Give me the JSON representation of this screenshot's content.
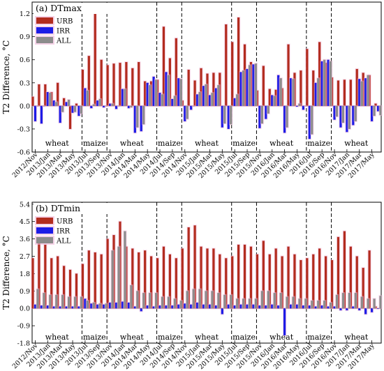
{
  "colors": {
    "URB": "#b22c1e",
    "IRR": "#1c1ce6",
    "ALL": "#8c8c8c",
    "glow": "#f0b6d8"
  },
  "chart_data": [
    {
      "type": "bar",
      "title": "(a) DTmax",
      "ylabel": "T2 Difference, °C",
      "ylim": [
        -0.6,
        1.35
      ],
      "yticks": [
        "-0.6",
        "-0.3",
        "0.0",
        "0.3",
        "0.6",
        "0.9",
        "1.2"
      ],
      "ytick_values": [
        -0.6,
        -0.3,
        0.0,
        0.3,
        0.6,
        0.9,
        1.2
      ],
      "legend": {
        "placement": "top-left",
        "entries": [
          "URB",
          "IRR",
          "ALL"
        ]
      },
      "xticks": [
        "2012/Nov",
        "2013/Jan",
        "2013/Mar",
        "2013/May",
        "2013/Jul",
        "2013/Sep",
        "2013/Nov",
        "2014/Jan",
        "2014/Mar",
        "2014/May",
        "2014/Jul",
        "2014/Sep",
        "2014/Nov",
        "2015/Jan",
        "2015/Mar",
        "2015/May",
        "2015/Jul",
        "2015/Sep",
        "2015/Nov",
        "2016/Jan",
        "2016/Mar",
        "2016/May",
        "2016/Jul",
        "2016/Sep",
        "2016/Nov",
        "2017/Jan",
        "2017/Mar",
        "2017/May"
      ],
      "seasons": [
        {
          "label": "wheat",
          "start": 0,
          "end": 8
        },
        {
          "label": "maize",
          "start": 8,
          "end": 12
        },
        {
          "label": "wheat",
          "start": 12,
          "end": 20
        },
        {
          "label": "maize",
          "start": 20,
          "end": 24
        },
        {
          "label": "wheat",
          "start": 24,
          "end": 32
        },
        {
          "label": "maize",
          "start": 32,
          "end": 36
        },
        {
          "label": "wheat",
          "start": 36,
          "end": 44
        },
        {
          "label": "maize",
          "start": 44,
          "end": 48
        },
        {
          "label": "wheat",
          "start": 48,
          "end": 56
        }
      ],
      "series": [
        {
          "name": "URB",
          "values": [
            0.12,
            0.28,
            0.28,
            0.18,
            0.3,
            0.1,
            -0.3,
            0.03,
            0.47,
            0.65,
            1.3,
            0.6,
            0.53,
            0.55,
            0.56,
            0.57,
            0.49,
            0.57,
            0.32,
            0.32,
            0.34,
            1.03,
            0.62,
            0.88,
            0.07,
            0.47,
            0.33,
            0.49,
            0.42,
            0.43,
            0.43,
            1.06,
            0.83,
            1.15,
            0.8,
            0.57,
            0.2,
            0.52,
            0.22,
            0.21,
            0.23,
            0.8,
            0.43,
            0.46,
            0.74,
            0.46,
            0.83,
            0.56,
            0.37,
            0.33,
            0.34,
            0.34,
            0.48,
            0.43,
            0.4,
            0.03
          ]
        },
        {
          "name": "IRR",
          "values": [
            -0.2,
            -0.23,
            0.18,
            0.07,
            -0.22,
            0.05,
            -0.09,
            -0.13,
            0.23,
            -0.03,
            0.07,
            -0.02,
            0.03,
            -0.04,
            0.22,
            -0.03,
            -0.35,
            -0.33,
            0.3,
            0.38,
            0.17,
            0.44,
            0.09,
            0.36,
            -0.2,
            -0.05,
            0.15,
            0.26,
            0.14,
            0.23,
            -0.28,
            -0.3,
            0.1,
            0.44,
            0.48,
            0.54,
            -0.29,
            -0.17,
            0.14,
            0.4,
            -0.35,
            0.36,
            -0.01,
            -0.05,
            -0.43,
            0.3,
            0.58,
            0.6,
            -0.18,
            -0.28,
            -0.34,
            -0.25,
            0.35,
            0.36,
            -0.2,
            -0.07
          ]
        },
        {
          "name": "ALL",
          "values": [
            0.0,
            0.0,
            0.17,
            0.05,
            -0.08,
            0.08,
            -0.08,
            -0.1,
            0.2,
            0.02,
            0.09,
            0.0,
            0.03,
            0.0,
            0.22,
            -0.02,
            -0.28,
            -0.24,
            0.27,
            0.34,
            0.15,
            0.4,
            0.13,
            0.35,
            -0.17,
            0.0,
            0.18,
            0.28,
            0.17,
            0.27,
            -0.23,
            -0.24,
            0.15,
            0.46,
            0.53,
            0.55,
            -0.23,
            -0.1,
            0.13,
            0.36,
            -0.28,
            0.35,
            0.03,
            0.0,
            -0.37,
            0.36,
            0.6,
            0.58,
            -0.14,
            -0.22,
            -0.3,
            -0.2,
            0.32,
            0.4,
            -0.13,
            -0.12
          ]
        }
      ]
    },
    {
      "type": "bar",
      "title": "(b) DTmin",
      "ylabel": "T2 Difference, °C",
      "ylim": [
        -1.8,
        5.5
      ],
      "yticks": [
        "-1.8",
        "-0.9",
        "0.0",
        "0.9",
        "1.8",
        "2.7",
        "3.6",
        "4.5",
        "5.4"
      ],
      "ytick_values": [
        -1.8,
        -0.9,
        0.0,
        0.9,
        1.8,
        2.7,
        3.6,
        4.5,
        5.4
      ],
      "legend": {
        "placement": "top-left",
        "entries": [
          "URB",
          "IRR",
          "ALL"
        ]
      },
      "xticks": [
        "2012/Nov",
        "2013/Jan",
        "2013/Mar",
        "2013/May",
        "2013/Jul",
        "2013/Sep",
        "2013/Nov",
        "2014/Jan",
        "2014/Mar",
        "2014/May",
        "2014/Jul",
        "2014/Sep",
        "2014/Nov",
        "2015/Jan",
        "2015/Mar",
        "2015/May",
        "2015/Jul",
        "2015/Sep",
        "2015/Nov",
        "2016/Jan",
        "2016/Mar",
        "2016/May",
        "2016/Jul",
        "2016/Sep",
        "2016/Nov",
        "2017/Jan",
        "2017/Mar",
        "2017/May"
      ],
      "seasons": [
        {
          "label": "wheat",
          "start": 0,
          "end": 8
        },
        {
          "label": "maize",
          "start": 8,
          "end": 12
        },
        {
          "label": "wheat",
          "start": 12,
          "end": 20
        },
        {
          "label": "maize",
          "start": 20,
          "end": 24
        },
        {
          "label": "wheat",
          "start": 24,
          "end": 32
        },
        {
          "label": "maize",
          "start": 32,
          "end": 36
        },
        {
          "label": "wheat",
          "start": 36,
          "end": 44
        },
        {
          "label": "maize",
          "start": 44,
          "end": 48
        },
        {
          "label": "wheat",
          "start": 48,
          "end": 56
        }
      ],
      "series": [
        {
          "name": "URB",
          "values": [
            2.6,
            3.5,
            3.3,
            2.6,
            2.7,
            2.2,
            2.0,
            1.8,
            2.3,
            3.0,
            2.9,
            2.8,
            3.6,
            3.8,
            4.5,
            3.2,
            3.1,
            2.9,
            3.0,
            2.7,
            2.6,
            3.2,
            2.8,
            2.6,
            3.1,
            4.2,
            4.3,
            3.2,
            3.1,
            3.1,
            2.8,
            2.6,
            2.7,
            3.3,
            3.3,
            3.2,
            2.8,
            3.5,
            2.8,
            3.1,
            2.7,
            3.2,
            2.8,
            2.5,
            2.6,
            2.8,
            3.1,
            2.7,
            2.5,
            3.7,
            4.0,
            3.2,
            2.7,
            2.1,
            3.0,
            0.1
          ]
        },
        {
          "name": "IRR",
          "values": [
            0.2,
            0.15,
            0.15,
            0.1,
            0.1,
            0.1,
            0.1,
            0.1,
            0.5,
            0.25,
            0.2,
            0.2,
            0.3,
            0.3,
            0.35,
            0.3,
            0.1,
            -0.15,
            0.15,
            0.1,
            0.15,
            0.15,
            0.15,
            0.2,
            0.25,
            0.2,
            0.3,
            0.2,
            0.2,
            0.15,
            -0.3,
            0.2,
            0.15,
            0.2,
            0.2,
            0.2,
            0.15,
            0.15,
            0.2,
            0.15,
            -1.4,
            0.2,
            0.2,
            0.15,
            0.15,
            0.1,
            0.15,
            0.1,
            0.1,
            -0.1,
            -0.1,
            0.1,
            -0.1,
            -0.3,
            -0.2,
            0.0
          ]
        },
        {
          "name": "ALL",
          "values": [
            1.0,
            0.8,
            0.7,
            0.7,
            0.7,
            0.6,
            0.6,
            0.6,
            0.4,
            0.3,
            0.25,
            0.25,
            3.0,
            3.2,
            4.0,
            1.2,
            0.9,
            0.8,
            0.8,
            0.8,
            0.6,
            0.6,
            0.5,
            0.4,
            0.9,
            1.0,
            1.0,
            0.9,
            0.9,
            0.8,
            0.7,
            0.7,
            0.5,
            0.5,
            0.5,
            0.5,
            0.9,
            0.9,
            0.8,
            0.8,
            0.6,
            0.6,
            0.5,
            0.5,
            0.4,
            0.4,
            0.4,
            0.3,
            0.7,
            0.8,
            0.8,
            0.8,
            0.6,
            0.5,
            0.5,
            0.65
          ]
        }
      ]
    }
  ]
}
